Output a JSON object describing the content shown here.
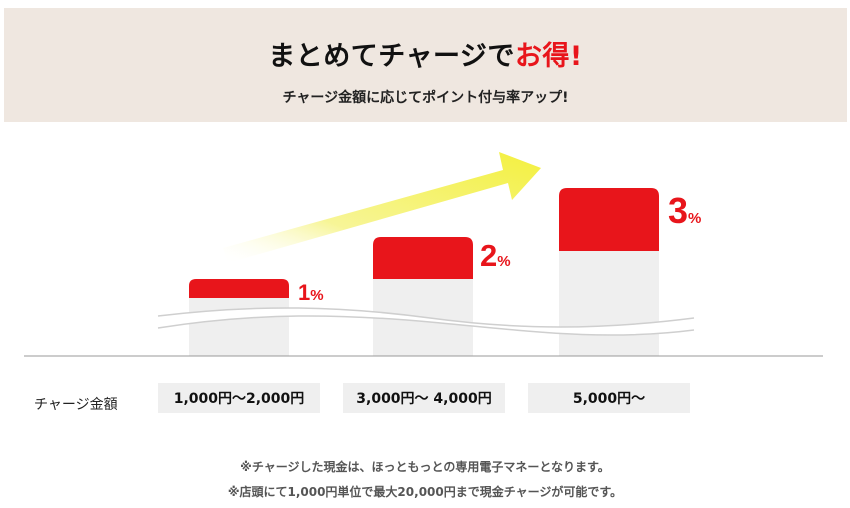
{
  "header": {
    "title_prefix": "まとめてチャージで",
    "title_accent": "お得!",
    "subtitle": "チャージ金額に応じてポイント付与率アップ!"
  },
  "tiers": [
    {
      "rate": "1",
      "unit": "%",
      "amount": "1,000円～2,000円"
    },
    {
      "rate": "2",
      "unit": "%",
      "amount": "3,000円～ 4,000円"
    },
    {
      "rate": "3",
      "unit": "%",
      "amount": "5,000円～"
    }
  ],
  "row_label": "チャージ金額",
  "notes": [
    "※チャージした現金は、ほっともっとの専用電子マネーとなります。",
    "※店頭にて1,000円単位で最大20,000円まで現金チャージが可能です。"
  ],
  "colors": {
    "accent": "#e8151b",
    "bar_gray": "#efefef",
    "arrow": "#f5f25a",
    "header_bg": "#efe7e0"
  }
}
